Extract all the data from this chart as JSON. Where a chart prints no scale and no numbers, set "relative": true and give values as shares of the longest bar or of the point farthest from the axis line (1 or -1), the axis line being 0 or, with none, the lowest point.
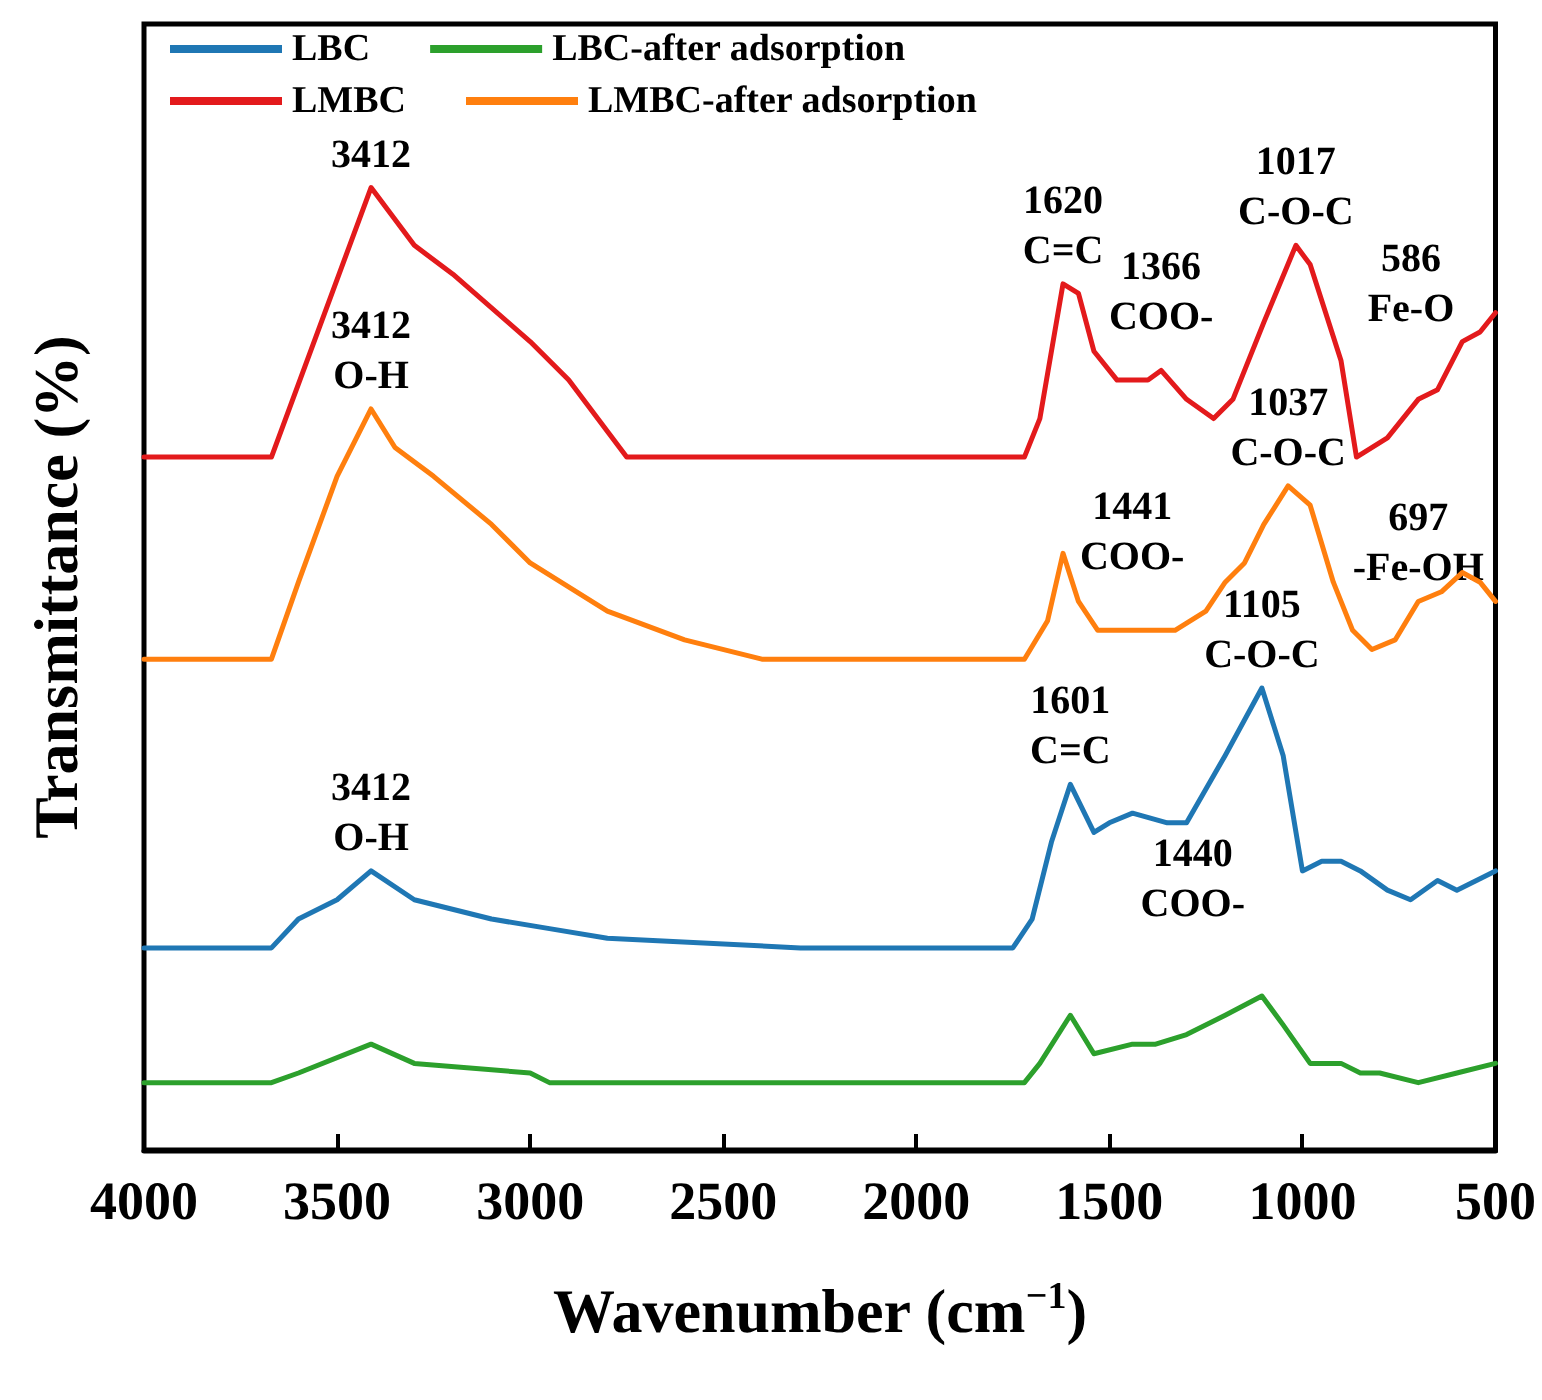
{
  "chart_data": {
    "type": "line",
    "relative": true,
    "xlabel": "Wavenumber (cm$^{−1}$)",
    "ylabel": "Transmittance (%)",
    "xlim": [
      4000,
      500
    ],
    "xticks": [
      4000,
      3500,
      3000,
      2500,
      2000,
      1500,
      1000,
      500
    ],
    "legend": "top left",
    "grid": false,
    "marker": "none",
    "line_style": "solid",
    "series": [
      {
        "name": "LBC",
        "color": "#1f77b4",
        "x": [
          4000,
          3670,
          3600,
          3500,
          3412,
          3300,
          3100,
          2950,
          2800,
          2300,
          1750,
          1700,
          1650,
          1601,
          1540,
          1500,
          1440,
          1350,
          1300,
          1200,
          1105,
          1050,
          1000,
          950,
          900,
          850,
          780,
          720,
          650,
          600,
          500
        ],
        "values": [
          0.21,
          0.21,
          0.24,
          0.26,
          0.29,
          0.26,
          0.24,
          0.23,
          0.22,
          0.21,
          0.21,
          0.24,
          0.32,
          0.38,
          0.33,
          0.34,
          0.35,
          0.34,
          0.34,
          0.41,
          0.48,
          0.41,
          0.29,
          0.3,
          0.3,
          0.29,
          0.27,
          0.26,
          0.28,
          0.27,
          0.29
        ]
      },
      {
        "name": "LBC-after adsorption",
        "color": "#2ca02c",
        "x": [
          4000,
          3670,
          3600,
          3412,
          3300,
          3000,
          2950,
          1720,
          1680,
          1601,
          1540,
          1440,
          1380,
          1300,
          1200,
          1105,
          1050,
          980,
          900,
          850,
          800,
          700,
          600,
          500
        ],
        "values": [
          0.07,
          0.07,
          0.08,
          0.11,
          0.09,
          0.08,
          0.07,
          0.07,
          0.09,
          0.14,
          0.1,
          0.11,
          0.11,
          0.12,
          0.14,
          0.16,
          0.13,
          0.09,
          0.09,
          0.08,
          0.08,
          0.07,
          0.08,
          0.09
        ]
      },
      {
        "name": "LMBC",
        "color": "#e31a1c",
        "x": [
          4000,
          3670,
          3412,
          3300,
          3200,
          3000,
          2900,
          2750,
          2000,
          1720,
          1680,
          1620,
          1580,
          1540,
          1480,
          1400,
          1366,
          1300,
          1230,
          1180,
          1100,
          1017,
          980,
          900,
          860,
          780,
          700,
          650,
          586,
          540,
          500
        ],
        "values": [
          0.72,
          0.72,
          1.0,
          0.94,
          0.91,
          0.84,
          0.8,
          0.72,
          0.72,
          0.72,
          0.76,
          0.9,
          0.89,
          0.83,
          0.8,
          0.8,
          0.81,
          0.78,
          0.76,
          0.78,
          0.86,
          0.94,
          0.92,
          0.82,
          0.72,
          0.74,
          0.78,
          0.79,
          0.84,
          0.85,
          0.87
        ]
      },
      {
        "name": "LMBC-after adsorption",
        "color": "#ff7f0e",
        "x": [
          4000,
          3670,
          3600,
          3500,
          3412,
          3350,
          3250,
          3100,
          3000,
          2800,
          2600,
          2400,
          2200,
          1720,
          1660,
          1620,
          1580,
          1530,
          1441,
          1330,
          1250,
          1200,
          1150,
          1100,
          1037,
          980,
          920,
          870,
          820,
          760,
          700,
          640,
          586,
          540,
          500
        ],
        "values": [
          0.51,
          0.51,
          0.59,
          0.7,
          0.77,
          0.73,
          0.7,
          0.65,
          0.61,
          0.56,
          0.53,
          0.51,
          0.51,
          0.51,
          0.55,
          0.62,
          0.57,
          0.54,
          0.54,
          0.54,
          0.56,
          0.59,
          0.61,
          0.65,
          0.69,
          0.67,
          0.59,
          0.54,
          0.52,
          0.53,
          0.57,
          0.58,
          0.6,
          0.59,
          0.57
        ]
      }
    ],
    "annotations": [
      {
        "text": "3412",
        "x": 3412,
        "y": 1.0
      },
      {
        "text": "1620\nC=C",
        "x": 1620,
        "y": 0.9
      },
      {
        "text": "1366\nCOO-",
        "x": 1366,
        "y": 0.81
      },
      {
        "text": "1017\nC-O-C",
        "x": 1017,
        "y": 0.94
      },
      {
        "text": "586\nFe-O",
        "x": 586,
        "y": 0.84
      },
      {
        "text": "3412\nO-H",
        "x": 3412,
        "y": 0.77
      },
      {
        "text": "1441\nCOO-",
        "x": 1441,
        "y": 0.54
      },
      {
        "text": "1037\nC-O-C",
        "x": 1037,
        "y": 0.69
      },
      {
        "text": "697\n-Fe-OH",
        "x": 700,
        "y": 0.57
      },
      {
        "text": "3412\nO-H",
        "x": 3412,
        "y": 0.29
      },
      {
        "text": "1601\nC=C",
        "x": 1601,
        "y": 0.38
      },
      {
        "text": "1440\nCOO-",
        "x": 1440,
        "y": 0.35
      },
      {
        "text": "1105\nC-O-C",
        "x": 1105,
        "y": 0.48
      }
    ]
  }
}
